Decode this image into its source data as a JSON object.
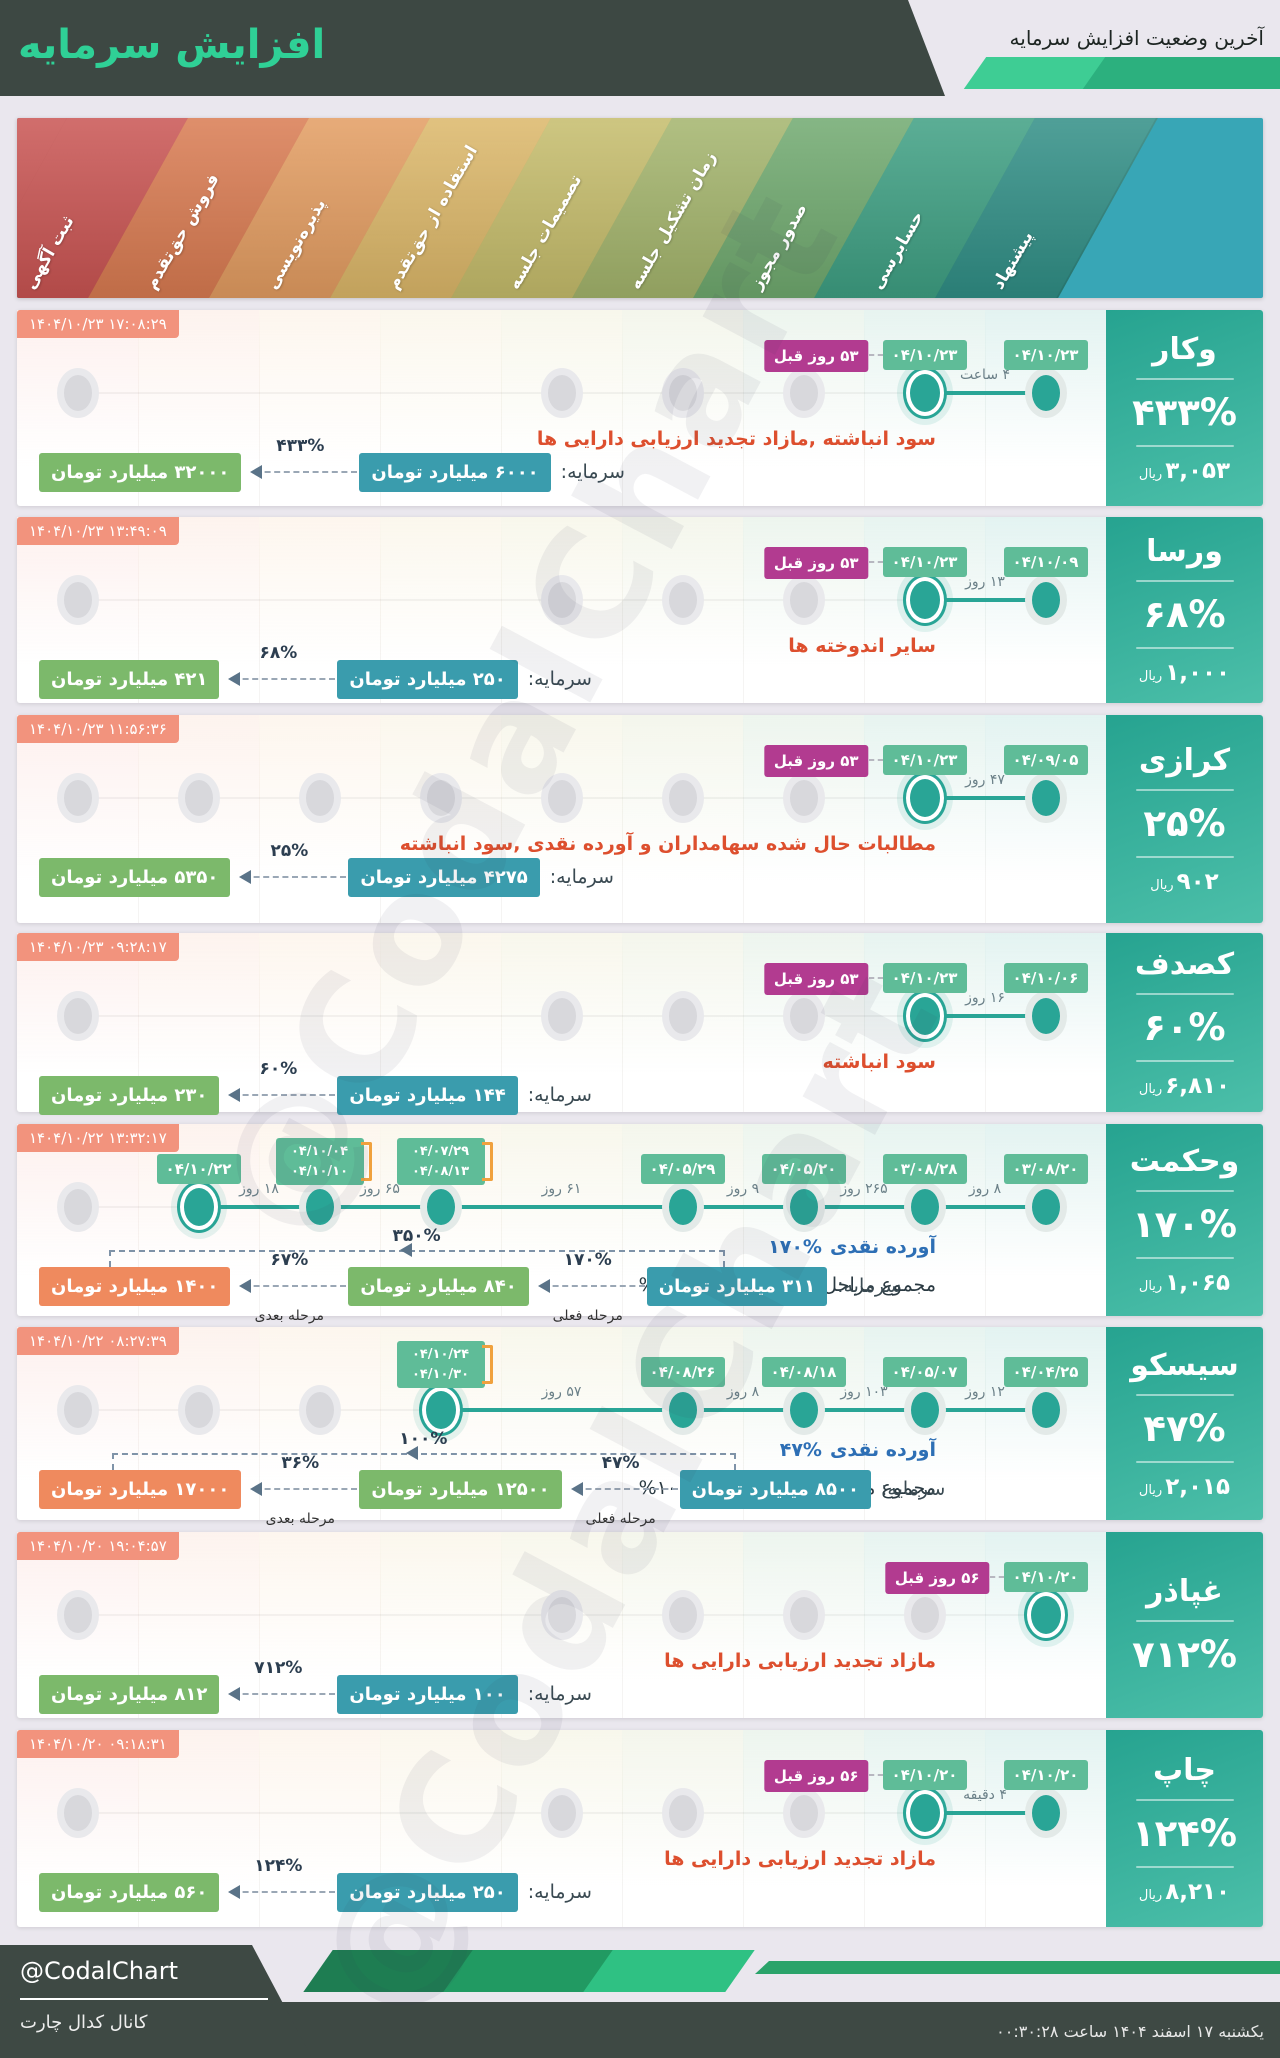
{
  "header": {
    "note": "آخرین وضعیت افزایش سرمایه",
    "title": "افزایش سرمایه",
    "accent_green": "#2fd096",
    "dark_bg": "#3d4843",
    "shapes": [
      "#3ecd94",
      "#2cb07e"
    ]
  },
  "stages": [
    {
      "label": "ثبت آگهی",
      "color": "#c95351",
      "tint": "#fdf0ee"
    },
    {
      "label": "فروش حق‌تقدم",
      "color": "#d97a50",
      "tint": "#fdf3ee"
    },
    {
      "label": "پذیره‌نویسی",
      "color": "#e39c60",
      "tint": "#fdf6ee"
    },
    {
      "label": "استفاده از حق‌تقدم",
      "color": "#dcb768",
      "tint": "#fbf7ed"
    },
    {
      "label": "تصمیمات جلسه",
      "color": "#c5bc6a",
      "tint": "#f8f7ec"
    },
    {
      "label": "زمان تشکیل جلسه",
      "color": "#a3b46b",
      "tint": "#f4f6ec"
    },
    {
      "label": "صدور مجوز",
      "color": "#6fa96e",
      "tint": "#edf5ee"
    },
    {
      "label": "حسابرسی",
      "color": "#3d9f82",
      "tint": "#e7f4f0"
    },
    {
      "label": "پیشنهاد",
      "color": "#2f8e85",
      "tint": "#e3f3f1"
    }
  ],
  "banner_trailing_color": "#38a6b6",
  "watermark": "@CodalChart",
  "companies": [
    {
      "name": "وکار",
      "pct": "۴۳۳%",
      "price": "۳,۰۵۳",
      "price_unit": "ریال",
      "timestamp": "۱۴۰۴/۱۰/۲۳ ۱۷:۰۸:۲۹",
      "gray_cols": [
        1,
        5,
        6,
        7
      ],
      "events": [
        {
          "col": 9,
          "dates": [
            "۰۴/۱۰/۲۳"
          ],
          "ring": false
        },
        {
          "col": 8,
          "dates": [
            "۰۴/۱۰/۲۳"
          ],
          "ring": true
        }
      ],
      "days_ago": {
        "col": 8,
        "label": "۵۳ روز قبل"
      },
      "segments": [
        {
          "from": 9,
          "to": 8,
          "label": "۴ ساعت"
        }
      ],
      "note_red": "سود انباشته ,مازاد تجدید ارزیابی دارایی ها",
      "capital": {
        "label": "سرمایه:",
        "items": [
          {
            "type": "box",
            "value": "۶۰۰۰ میلیارد تومان",
            "color": "teal"
          },
          {
            "type": "arrow",
            "pct": "۴۳۳%"
          },
          {
            "type": "box",
            "value": "۳۲۰۰۰ میلیارد تومان",
            "color": "green"
          }
        ]
      }
    },
    {
      "name": "ورسا",
      "pct": "۶۸%",
      "price": "۱,۰۰۰",
      "price_unit": "ریال",
      "timestamp": "۱۴۰۴/۱۰/۲۳ ۱۳:۴۹:۰۹",
      "gray_cols": [
        1,
        5,
        6,
        7
      ],
      "events": [
        {
          "col": 9,
          "dates": [
            "۰۴/۱۰/۰۹"
          ],
          "ring": false
        },
        {
          "col": 8,
          "dates": [
            "۰۴/۱۰/۲۳"
          ],
          "ring": true
        }
      ],
      "days_ago": {
        "col": 8,
        "label": "۵۳ روز قبل"
      },
      "segments": [
        {
          "from": 9,
          "to": 8,
          "label": "۱۳ روز"
        }
      ],
      "note_red": "سایر اندوخته ها",
      "capital": {
        "label": "سرمایه:",
        "items": [
          {
            "type": "box",
            "value": "۲۵۰ میلیارد تومان",
            "color": "teal"
          },
          {
            "type": "arrow",
            "pct": "۶۸%"
          },
          {
            "type": "box",
            "value": "۴۲۱ میلیارد تومان",
            "color": "green"
          }
        ]
      }
    },
    {
      "name": "کرازی",
      "pct": "۲۵%",
      "price": "۹۰۲",
      "price_unit": "ریال",
      "timestamp": "۱۴۰۴/۱۰/۲۳ ۱۱:۵۶:۳۶",
      "gray_cols": [
        1,
        2,
        3,
        4,
        5,
        6,
        7
      ],
      "events": [
        {
          "col": 9,
          "dates": [
            "۰۴/۰۹/۰۵"
          ],
          "ring": false
        },
        {
          "col": 8,
          "dates": [
            "۰۴/۱۰/۲۳"
          ],
          "ring": true
        }
      ],
      "days_ago": {
        "col": 8,
        "label": "۵۳ روز قبل"
      },
      "segments": [
        {
          "from": 9,
          "to": 8,
          "label": "۴۷ روز"
        }
      ],
      "note_red": "مطالبات حال شده سهامداران و آورده نقدی ,سود انباشته",
      "capital": {
        "label": "سرمایه:",
        "items": [
          {
            "type": "box",
            "value": "۴۲۷۵ میلیارد تومان",
            "color": "teal"
          },
          {
            "type": "arrow",
            "pct": "۲۵%"
          },
          {
            "type": "box",
            "value": "۵۳۵۰ میلیارد تومان",
            "color": "green"
          }
        ]
      }
    },
    {
      "name": "کصدف",
      "pct": "۶۰%",
      "price": "۶,۸۱۰",
      "price_unit": "ریال",
      "timestamp": "۱۴۰۴/۱۰/۲۳ ۰۹:۲۸:۱۷",
      "gray_cols": [
        1,
        5,
        6,
        7
      ],
      "events": [
        {
          "col": 9,
          "dates": [
            "۰۴/۱۰/۰۶"
          ],
          "ring": false
        },
        {
          "col": 8,
          "dates": [
            "۰۴/۱۰/۲۳"
          ],
          "ring": true
        }
      ],
      "days_ago": {
        "col": 8,
        "label": "۵۳ روز قبل"
      },
      "segments": [
        {
          "from": 9,
          "to": 8,
          "label": "۱۶ روز"
        }
      ],
      "note_red": "سود انباشته",
      "capital": {
        "label": "سرمایه:",
        "items": [
          {
            "type": "box",
            "value": "۱۴۴ میلیارد تومان",
            "color": "teal"
          },
          {
            "type": "arrow",
            "pct": "۶۰%"
          },
          {
            "type": "box",
            "value": "۲۳۰ میلیارد تومان",
            "color": "green"
          }
        ]
      }
    },
    {
      "name": "وحکمت",
      "pct": "۱۷۰%",
      "price": "۱,۰۶۵",
      "price_unit": "ریال",
      "timestamp": "۱۴۰۴/۱۰/۲۲ ۱۳:۳۲:۱۷",
      "gray_cols": [
        1
      ],
      "events": [
        {
          "col": 9,
          "dates": [
            "۰۳/۰۸/۲۰"
          ],
          "ring": false
        },
        {
          "col": 8,
          "dates": [
            "۰۳/۰۸/۲۸"
          ],
          "ring": false
        },
        {
          "col": 7,
          "dates": [
            "۰۴/۰۵/۲۰"
          ],
          "ring": false
        },
        {
          "col": 6,
          "dates": [
            "۰۴/۰۵/۲۹"
          ],
          "ring": false
        },
        {
          "col": 4,
          "dates": [
            "۰۴/۰۷/۲۹",
            "۰۴/۰۸/۱۳"
          ],
          "ring": false
        },
        {
          "col": 3,
          "dates": [
            "۰۴/۱۰/۰۴",
            "۰۴/۱۰/۱۰"
          ],
          "ring": false
        },
        {
          "col": 2,
          "dates": [
            "۰۴/۱۰/۲۲"
          ],
          "ring": true
        }
      ],
      "days_ago": null,
      "segments": [
        {
          "from": 9,
          "to": 8,
          "label": "۸ روز"
        },
        {
          "from": 8,
          "to": 7,
          "label": "۲۶۵ روز"
        },
        {
          "from": 7,
          "to": 6,
          "label": "۹ روز"
        },
        {
          "from": 6,
          "to": 4,
          "label": "۶۱ روز"
        },
        {
          "from": 4,
          "to": 3,
          "label": "۶۵ روز"
        },
        {
          "from": 3,
          "to": 2,
          "label": "۱۸ روز"
        }
      ],
      "note_blue": {
        "pct": "۱۷۰%",
        "text": "آورده نقدی"
      },
      "note_total": "مجموع مراحل افزایش سرمایه:۳۵۰%",
      "capital": {
        "label": "سرمایه:",
        "bracket_pct": "۳۵۰%",
        "items": [
          {
            "type": "box",
            "value": "۳۱۱ میلیارد تومان",
            "color": "teal"
          },
          {
            "type": "arrow",
            "pct": "۱۷۰%",
            "sub": "مرحله فعلی"
          },
          {
            "type": "box",
            "value": "۸۴۰ میلیارد تومان",
            "color": "green"
          },
          {
            "type": "arrow",
            "pct": "۶۷%",
            "sub": "مرحله بعدی"
          },
          {
            "type": "box",
            "value": "۱۴۰۰ میلیارد تومان",
            "color": "orange"
          }
        ]
      }
    },
    {
      "name": "سیسکو",
      "pct": "۴۷%",
      "price": "۲,۰۱۵",
      "price_unit": "ریال",
      "timestamp": "۱۴۰۴/۱۰/۲۲ ۰۸:۲۷:۳۹",
      "gray_cols": [
        1,
        2,
        3
      ],
      "events": [
        {
          "col": 9,
          "dates": [
            "۰۴/۰۴/۲۵"
          ],
          "ring": false
        },
        {
          "col": 8,
          "dates": [
            "۰۴/۰۵/۰۷"
          ],
          "ring": false
        },
        {
          "col": 7,
          "dates": [
            "۰۴/۰۸/۱۸"
          ],
          "ring": false
        },
        {
          "col": 6,
          "dates": [
            "۰۴/۰۸/۲۶"
          ],
          "ring": false
        },
        {
          "col": 4,
          "dates": [
            "۰۴/۱۰/۲۴",
            "۰۴/۱۰/۳۰"
          ],
          "ring": true
        }
      ],
      "days_ago": null,
      "segments": [
        {
          "from": 9,
          "to": 8,
          "label": "۱۲ روز"
        },
        {
          "from": 8,
          "to": 7,
          "label": "۱۰۳ روز"
        },
        {
          "from": 7,
          "to": 6,
          "label": "۸ روز"
        },
        {
          "from": 6,
          "to": 4,
          "label": "۵۷ روز"
        }
      ],
      "note_blue": {
        "pct": "۴۷%",
        "text": "آورده نقدی"
      },
      "note_total": "مجموع مراحل افزایش سرمایه:۱۰۰%",
      "capital": {
        "label": "سرمایه:",
        "bracket_pct": "۱۰۰%",
        "items": [
          {
            "type": "box",
            "value": "۸۵۰۰ میلیارد تومان",
            "color": "teal"
          },
          {
            "type": "arrow",
            "pct": "۴۷%",
            "sub": "مرحله فعلی"
          },
          {
            "type": "box",
            "value": "۱۲۵۰۰ میلیارد تومان",
            "color": "green"
          },
          {
            "type": "arrow",
            "pct": "۳۶%",
            "sub": "مرحله بعدی"
          },
          {
            "type": "box",
            "value": "۱۷۰۰۰ میلیارد تومان",
            "color": "orange"
          }
        ]
      }
    },
    {
      "name": "غپاذر",
      "pct": "۷۱۲%",
      "price": null,
      "price_unit": null,
      "timestamp": "۱۴۰۴/۱۰/۲۰ ۱۹:۰۴:۵۷",
      "gray_cols": [
        1,
        5,
        6,
        7,
        8
      ],
      "events": [
        {
          "col": 9,
          "dates": [
            "۰۴/۱۰/۲۰"
          ],
          "ring": true
        }
      ],
      "days_ago": {
        "col": 9,
        "label": "۵۶ روز قبل"
      },
      "segments": [],
      "note_red": "مازاد تجدید ارزیابی دارایی ها",
      "capital": {
        "label": "سرمایه:",
        "items": [
          {
            "type": "box",
            "value": "۱۰۰ میلیارد تومان",
            "color": "teal"
          },
          {
            "type": "arrow",
            "pct": "۷۱۲%"
          },
          {
            "type": "box",
            "value": "۸۱۲ میلیارد تومان",
            "color": "green"
          }
        ]
      }
    },
    {
      "name": "چاپ",
      "pct": "۱۲۴%",
      "price": "۸,۲۱۰",
      "price_unit": "ریال",
      "timestamp": "۱۴۰۴/۱۰/۲۰ ۰۹:۱۸:۳۱",
      "gray_cols": [
        1,
        5,
        6,
        7
      ],
      "events": [
        {
          "col": 9,
          "dates": [
            "۰۴/۱۰/۲۰"
          ],
          "ring": false
        },
        {
          "col": 8,
          "dates": [
            "۰۴/۱۰/۲۰"
          ],
          "ring": true
        }
      ],
      "days_ago": {
        "col": 8,
        "label": "۵۶ روز قبل"
      },
      "segments": [
        {
          "from": 9,
          "to": 8,
          "label": "۴ دقیقه"
        }
      ],
      "note_red": "مازاد تجدید ارزیابی دارایی ها",
      "capital": {
        "label": "سرمایه:",
        "items": [
          {
            "type": "box",
            "value": "۲۵۰ میلیارد تومان",
            "color": "teal"
          },
          {
            "type": "arrow",
            "pct": "۱۲۴%"
          },
          {
            "type": "box",
            "value": "۵۶۰ میلیارد تومان",
            "color": "green"
          }
        ]
      }
    }
  ],
  "footer": {
    "handle": "@CodalChart",
    "channel": "کانال کدال چارت",
    "datetime": "یکشنبه ۱۷ اسفند ۱۴۰۴ ساعت ۰۰:۳۰:۲۸",
    "shapes": [
      "#1e7d52",
      "#219a62",
      "#2fc183"
    ],
    "thinbar_color": "#2aa36a"
  },
  "chart_data": {
    "type": "table",
    "title": "آخرین وضعیت افزایش سرمایه",
    "stage_columns_right_to_left": [
      "پیشنهاد",
      "حسابرسی",
      "صدور مجوز",
      "زمان تشکیل جلسه",
      "تصمیمات جلسه",
      "استفاده از حق‌تقدم",
      "پذیره‌نویسی",
      "فروش حق‌تقدم",
      "ثبت آگهی"
    ],
    "rows": [
      {
        "ticker": "وکار",
        "increase_pct": 433,
        "price_rial": 3053,
        "current_capital_b_toman": 6000,
        "new_capital_b_toman": 32000,
        "current_stage": "حسابرسی",
        "stage_dates": {
          "پیشنهاد": "04/10/23",
          "حسابرسی": "04/10/23"
        },
        "elapsed": "۴ ساعت",
        "days_since": "53"
      },
      {
        "ticker": "ورسا",
        "increase_pct": 68,
        "price_rial": 1000,
        "current_capital_b_toman": 250,
        "new_capital_b_toman": 421,
        "current_stage": "حسابرسی",
        "stage_dates": {
          "پیشنهاد": "04/10/09",
          "حسابرسی": "04/10/23"
        },
        "elapsed": "۱۳ روز",
        "days_since": "53"
      },
      {
        "ticker": "کرازی",
        "increase_pct": 25,
        "price_rial": 902,
        "current_capital_b_toman": 4275,
        "new_capital_b_toman": 5350,
        "current_stage": "حسابرسی",
        "stage_dates": {
          "پیشنهاد": "04/09/05",
          "حسابرسی": "04/10/23"
        },
        "elapsed": "۴۷ روز",
        "days_since": "53"
      },
      {
        "ticker": "کصدف",
        "increase_pct": 60,
        "price_rial": 6810,
        "current_capital_b_toman": 144,
        "new_capital_b_toman": 230,
        "current_stage": "حسابرسی",
        "stage_dates": {
          "پیشنهاد": "04/10/06",
          "حسابرسی": "04/10/23"
        },
        "elapsed": "۱۶ روز",
        "days_since": "53"
      },
      {
        "ticker": "وحکمت",
        "increase_pct": 170,
        "price_rial": 1065,
        "current_capital_b_toman": 311,
        "next_capital_b_toman": 840,
        "final_capital_b_toman": 1400,
        "total_pct": 350,
        "next_stage_pct": 67,
        "current_stage": "فروش حق‌تقدم",
        "stage_dates": {
          "پیشنهاد": "03/08/20",
          "حسابرسی": "03/08/28",
          "صدور مجوز": "04/05/20",
          "زمان تشکیل جلسه": "04/05/29",
          "استفاده از حق‌تقدم": "04/07/29|04/08/13",
          "پذیره‌نویسی": "04/10/04|04/10/10",
          "فروش حق‌تقدم": "04/10/22"
        }
      },
      {
        "ticker": "سیسکو",
        "increase_pct": 47,
        "price_rial": 2015,
        "current_capital_b_toman": 8500,
        "next_capital_b_toman": 12500,
        "final_capital_b_toman": 17000,
        "total_pct": 100,
        "next_stage_pct": 36,
        "current_stage": "استفاده از حق‌تقدم",
        "stage_dates": {
          "پیشنهاد": "04/04/25",
          "حسابرسی": "04/05/07",
          "صدور مجوز": "04/08/18",
          "زمان تشکیل جلسه": "04/08/26",
          "استفاده از حق‌تقدم": "04/10/24|04/10/30"
        }
      },
      {
        "ticker": "غپاذر",
        "increase_pct": 712,
        "price_rial": null,
        "current_capital_b_toman": 100,
        "new_capital_b_toman": 812,
        "current_stage": "پیشنهاد",
        "stage_dates": {
          "پیشنهاد": "04/10/20"
        },
        "days_since": "56"
      },
      {
        "ticker": "چاپ",
        "increase_pct": 124,
        "price_rial": 8210,
        "current_capital_b_toman": 250,
        "new_capital_b_toman": 560,
        "current_stage": "حسابرسی",
        "stage_dates": {
          "پیشنهاد": "04/10/20",
          "حسابرسی": "04/10/20"
        },
        "elapsed": "۴ دقیقه",
        "days_since": "56"
      }
    ]
  }
}
